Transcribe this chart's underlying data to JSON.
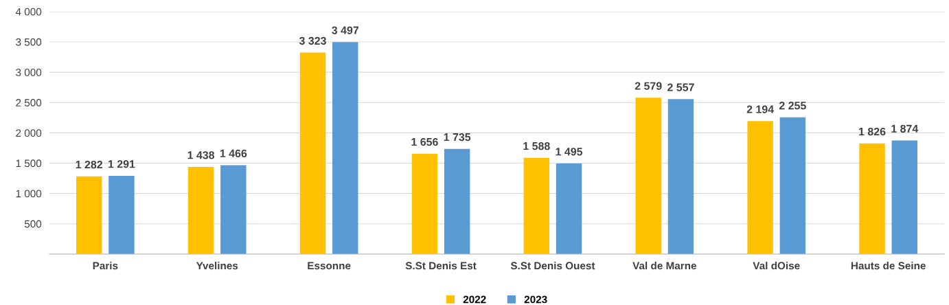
{
  "chart_data": {
    "type": "bar",
    "categories": [
      "Paris",
      "Yvelines",
      "Essonne",
      "S.St Denis Est",
      "S.St Denis Ouest",
      "Val de Marne",
      "Val dOise",
      "Hauts de Seine"
    ],
    "series": [
      {
        "name": "2022",
        "color": "#ffc000",
        "values": [
          1282,
          1438,
          3323,
          1656,
          1588,
          2579,
          2194,
          1826
        ],
        "value_labels": [
          "1 282",
          "1 438",
          "3 323",
          "1 656",
          "1 588",
          "2 579",
          "2 194",
          "1 826"
        ]
      },
      {
        "name": "2023",
        "color": "#5b9bd5",
        "values": [
          1291,
          1466,
          3497,
          1735,
          1495,
          2557,
          2255,
          1874
        ],
        "value_labels": [
          "1 291",
          "1 466",
          "3 497",
          "1 735",
          "1 495",
          "2 557",
          "2 255",
          "1 874"
        ]
      }
    ],
    "ylim": [
      0,
      4000
    ],
    "yticks": [
      {
        "value": 0,
        "label": null
      },
      500,
      {
        "value": 1000,
        "label": "1 000"
      },
      {
        "value": 1500,
        "label": "1 500"
      },
      {
        "value": 2000,
        "label": "2 000"
      },
      {
        "value": 2500,
        "label": "2 500"
      },
      {
        "value": 3000,
        "label": "3 000"
      },
      {
        "value": 3500,
        "label": "3 500"
      },
      {
        "value": 4000,
        "label": "4 000"
      }
    ],
    "grid": "y",
    "legend": "bottom"
  }
}
